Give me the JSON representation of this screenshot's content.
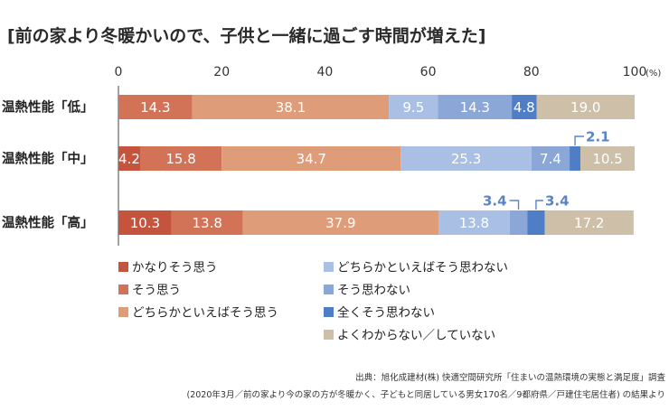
{
  "chart_data": {
    "type": "bar",
    "orientation": "horizontal",
    "stacked": true,
    "title": "[前の家より冬暖かいので、子供と一緒に過ごす時間が増えた]",
    "unit_label": "(%)",
    "xlim": [
      0,
      100
    ],
    "x_ticks": [
      "0",
      "20",
      "40",
      "60",
      "80",
      "100"
    ],
    "categories": [
      "温熱性能「低」",
      "温熱性能「中」",
      "温熱性能「高」"
    ],
    "series": [
      {
        "name": "かなりそう思う",
        "color": "#c4543e",
        "values": [
          0,
          4.2,
          10.3
        ]
      },
      {
        "name": "そう思う",
        "color": "#d27357",
        "values": [
          14.3,
          15.8,
          13.8
        ]
      },
      {
        "name": "どちらかといえばそう思う",
        "color": "#de9c79",
        "values": [
          38.1,
          34.7,
          37.9
        ]
      },
      {
        "name": "どちらかといえばそう思わない",
        "color": "#a9bfe3",
        "values": [
          9.5,
          25.3,
          13.8
        ]
      },
      {
        "name": "そう思わない",
        "color": "#8aa7d8",
        "values": [
          14.3,
          7.4,
          3.4
        ]
      },
      {
        "name": "全くそう思わない",
        "color": "#4f7ec6",
        "values": [
          4.8,
          2.1,
          3.4
        ]
      },
      {
        "name": "よくわからない／していない",
        "color": "#cdbfa8",
        "values": [
          19.0,
          10.5,
          17.2
        ]
      }
    ],
    "segment_labels": [
      [
        "",
        "14.3",
        "38.1",
        "9.5",
        "14.3",
        "4.8",
        "19.0"
      ],
      [
        "4.2",
        "15.8",
        "34.7",
        "25.3",
        "7.4",
        "",
        "10.5"
      ],
      [
        "10.3",
        "13.8",
        "37.9",
        "13.8",
        "",
        "",
        "17.2"
      ]
    ],
    "callouts": [
      {
        "row": 1,
        "series": 5,
        "text": "2.1"
      },
      {
        "row": 2,
        "series": 4,
        "text": "3.4"
      },
      {
        "row": 2,
        "series": 5,
        "text": "3.4"
      }
    ],
    "legend_layout": [
      [
        0,
        3
      ],
      [
        1,
        4
      ],
      [
        2,
        5
      ],
      [
        null,
        6
      ]
    ]
  },
  "source": {
    "line1": "出典：旭化成建材(株) 快適空間研究所「住まいの温熱環境の実態と満足度」調査",
    "line2": "(2020年3月／前の家より今の家の方が冬暖かく、子どもと同居している男女170名／9都府県／戸建住宅居住者) の結果より"
  }
}
